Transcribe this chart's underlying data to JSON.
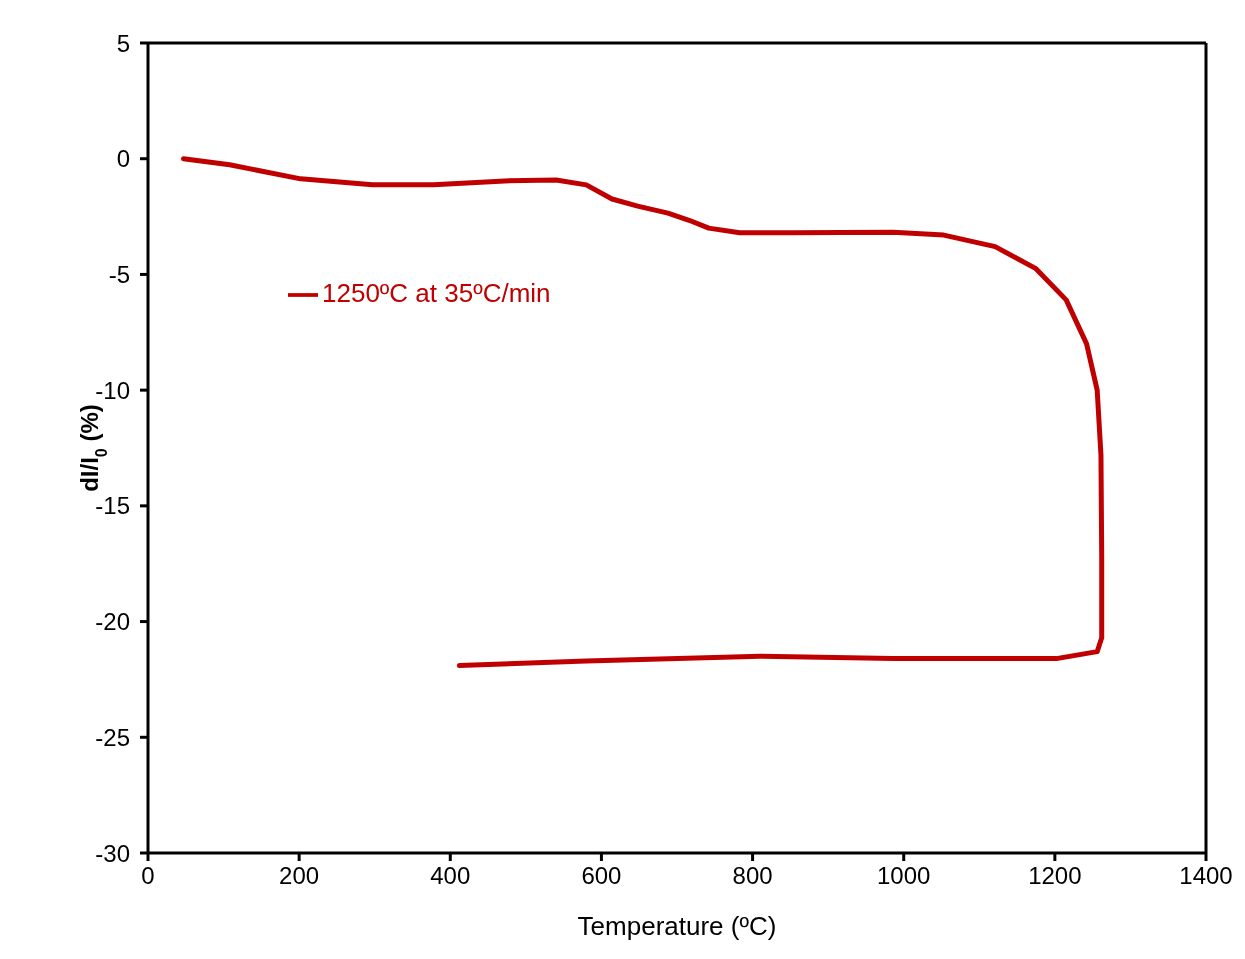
{
  "chart_data": {
    "type": "line",
    "xlabel": "Temperature (ºC)",
    "ylabel": "dI/I$_{0}$ (%)",
    "xlim": [
      0,
      1400
    ],
    "xticks": [
      0,
      200,
      400,
      600,
      800,
      1000,
      1200,
      1400
    ],
    "ylim": [
      -30,
      5
    ],
    "yticks": [
      -30,
      -25,
      -20,
      -15,
      -10,
      -5,
      0,
      5
    ],
    "legend": "top left",
    "marker": "none",
    "line_style": "solid",
    "series": [
      {
        "name": "1250ºC at 35ºC/min",
        "color": "#c00000",
        "x": [
          47,
          108,
          202,
          297,
          378,
          472,
          540,
          580,
          614,
          648,
          688,
          716,
          742,
          783,
          851,
          986,
          1053,
          1121,
          1175,
          1215,
          1242,
          1256,
          1261,
          1262,
          1262,
          1256,
          1202,
          1121,
          986,
          810,
          580,
          412
        ],
        "values": [
          0,
          -0.26,
          -0.87,
          -1.13,
          -1.13,
          -0.96,
          -0.92,
          -1.13,
          -1.74,
          -2.05,
          -2.35,
          -2.66,
          -3.0,
          -3.2,
          -3.2,
          -3.18,
          -3.3,
          -3.8,
          -4.75,
          -6.1,
          -8.0,
          -10,
          -12.8,
          -17.2,
          -20.7,
          -21.3,
          -21.6,
          -21.6,
          -21.6,
          -21.5,
          -21.7,
          -21.9
        ]
      }
    ]
  }
}
